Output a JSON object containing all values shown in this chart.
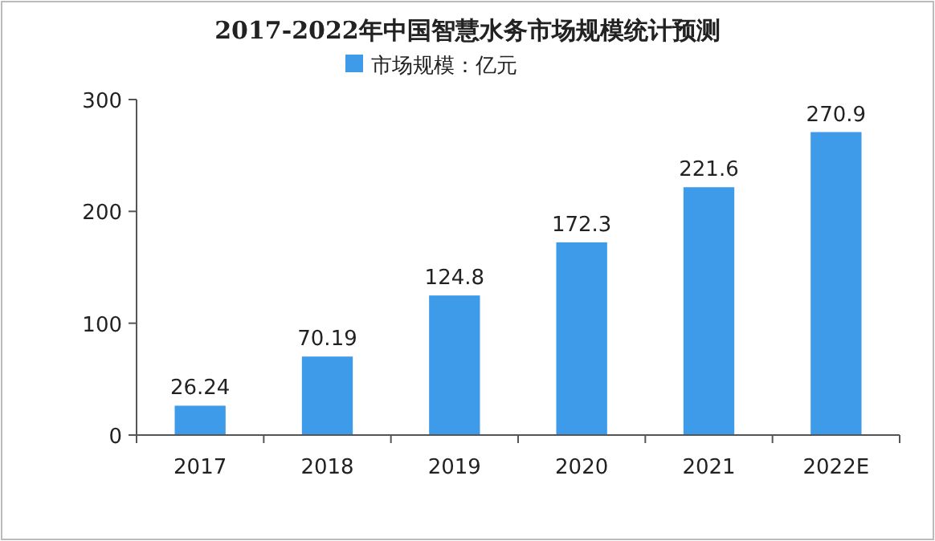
{
  "chart_data": {
    "type": "bar",
    "title": "2017-2022年中国智慧水务市场规模统计预测",
    "categories": [
      "2017",
      "2018",
      "2019",
      "2020",
      "2021",
      "2022E"
    ],
    "series": [
      {
        "name": "市场规模：亿元",
        "color": "#3d9be9",
        "values": [
          26.24,
          70.19,
          124.8,
          172.3,
          221.6,
          270.9
        ]
      }
    ],
    "ylim": [
      0,
      300
    ],
    "yticks": [
      0,
      100,
      200,
      300
    ],
    "data_labels": true,
    "legend": "top",
    "grid": false
  }
}
